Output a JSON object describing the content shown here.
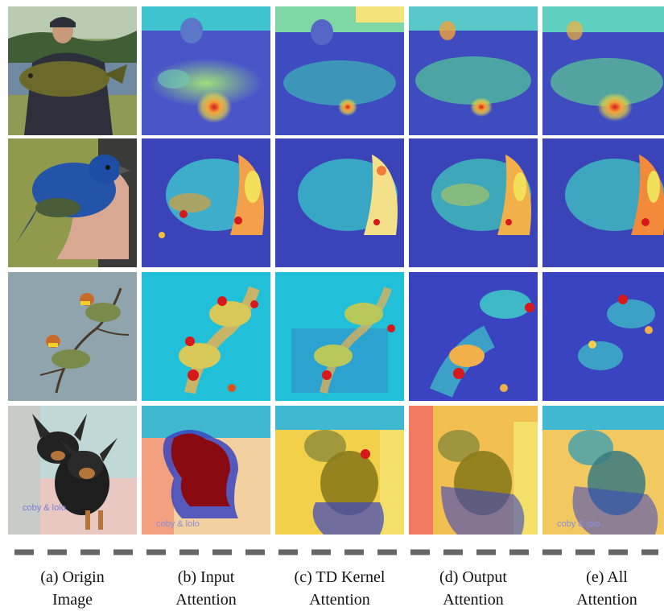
{
  "figure": {
    "columns": [
      {
        "line1": "(a) Origin",
        "line2": "Image"
      },
      {
        "line1": "(b) Input",
        "line2": "Attention"
      },
      {
        "line1": "(c) TD Kernel",
        "line2": "Attention"
      },
      {
        "line1": "(d) Output",
        "line2": "Attention"
      },
      {
        "line1": "(e) All",
        "line2": "Attention"
      }
    ],
    "rows": [
      {
        "subject": "fisherman-with-fish"
      },
      {
        "subject": "blue-bird-on-hand"
      },
      {
        "subject": "two-birds-on-branch"
      },
      {
        "subject": "two-chihuahuas"
      }
    ],
    "photo_text": "coby & lolo",
    "colors": {
      "heat_low": "#3b3fd6",
      "heat_mid": "#21c9d6",
      "heat_high": "#f5e03a",
      "heat_max": "#d7191c",
      "dash": "#666666"
    }
  }
}
